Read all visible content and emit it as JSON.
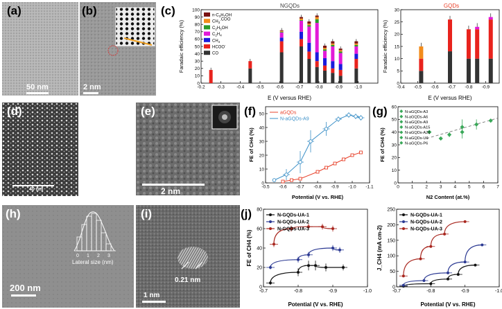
{
  "figure": {
    "panels": {
      "a": {
        "label": "(a)",
        "scale": "50 nm"
      },
      "b": {
        "label": "(b)",
        "scale": "2 nm"
      },
      "c": {
        "label": "(c)"
      },
      "d": {
        "label": "(d)",
        "scale": "40 nm"
      },
      "e": {
        "label": "(e)",
        "scale": "2 nm"
      },
      "f": {
        "label": "(f)"
      },
      "g": {
        "label": "(g)"
      },
      "h": {
        "label": "(h)",
        "scale": "200 nm",
        "inset_xlabel": "Lateral size (nm)",
        "inset_ticks": [
          "0",
          "1",
          "2",
          "3"
        ]
      },
      "i": {
        "label": "(i)",
        "scale": "1 nm",
        "lattice": "0.21 nm"
      },
      "j": {
        "label": "(j)"
      }
    },
    "colors": {
      "co": "#333333",
      "hcoo": "#e8231d",
      "ch4": "#1a1adc",
      "c2h4": "#e21ad8",
      "c2h5oh": "#2a9a2a",
      "ch3coo": "#f28c1c",
      "npr": "#7a1313",
      "red": "#e8412a",
      "blue": "#3a8fc7",
      "green": "#3aa859",
      "j1": "#111111",
      "j2": "#2c3a93",
      "j3": "#a8261e"
    }
  },
  "chart_data": [
    {
      "id": "c-left",
      "type": "bar",
      "stacked": true,
      "title": "NGQDs",
      "xlabel": "E (V versus RHE)",
      "ylabel": "Faradaic efficiency (%)",
      "xlim": [
        -0.2,
        -1.1
      ],
      "ylim": [
        0,
        100
      ],
      "xticks": [
        "-0.2",
        "-0.3",
        "-0.4",
        "-0.5",
        "-0.6",
        "-0.7",
        "-0.8",
        "-0.9",
        "-1.0"
      ],
      "yticks": [
        "0",
        "10",
        "20",
        "30",
        "40",
        "50",
        "60",
        "70",
        "80",
        "90",
        "100"
      ],
      "legend": [
        "n-C3H7OH",
        "CH3COO-",
        "C2H5OH",
        "C2H4",
        "CH4",
        "HCOO-",
        "CO"
      ],
      "legend_display": [
        {
          "t": "n-C",
          "sub": "3",
          "t2": "H",
          "sub2": "7",
          "t3": "OH"
        },
        {
          "t": "CH",
          "sub": "3",
          "t2": "COO",
          "sup": "-"
        },
        {
          "t": "C",
          "sub": "2",
          "t2": "H",
          "sub2": "5",
          "t3": "OH"
        },
        {
          "t": "C",
          "sub": "2",
          "t2": "H",
          "sub2": "4"
        },
        {
          "t": "CH",
          "sub": "4"
        },
        {
          "t": "HCOO",
          "sup": "-"
        },
        {
          "t": "CO"
        }
      ],
      "x": [
        -0.25,
        -0.45,
        -0.61,
        -0.71,
        -0.75,
        -0.79,
        -0.83,
        -0.87,
        -0.91,
        -0.99
      ],
      "series": [
        {
          "name": "CO",
          "values": [
            0,
            20,
            42,
            50,
            33,
            22,
            17,
            14,
            10,
            20
          ]
        },
        {
          "name": "HCOO-",
          "values": [
            18,
            10,
            15,
            10,
            10,
            8,
            7,
            6,
            8,
            13
          ]
        },
        {
          "name": "CH4",
          "values": [
            0,
            0,
            5,
            10,
            12,
            12,
            10,
            10,
            8,
            7
          ]
        },
        {
          "name": "C2H4",
          "values": [
            0,
            0,
            7,
            15,
            22,
            40,
            10,
            20,
            15,
            10
          ]
        },
        {
          "name": "C2H5OH",
          "values": [
            0,
            0,
            1,
            1,
            2,
            5,
            2,
            2,
            2,
            2
          ]
        },
        {
          "name": "CH3COO-",
          "values": [
            0,
            0,
            1,
            2,
            2,
            3,
            2,
            2,
            2,
            2
          ]
        },
        {
          "name": "n-C3H7OH",
          "values": [
            0,
            0,
            1,
            2,
            3,
            2,
            3,
            3,
            2,
            3
          ]
        }
      ]
    },
    {
      "id": "c-right",
      "type": "bar",
      "stacked": true,
      "title": "GQDs",
      "xlabel": "E (V versus RHE)",
      "ylabel": "Faradaic efficiency (%)",
      "xlim": [
        -0.4,
        -0.98
      ],
      "ylim": [
        0,
        30
      ],
      "xticks": [
        "-0.4",
        "-0.5",
        "-0.6",
        "-0.7",
        "-0.8",
        "-0.9"
      ],
      "yticks": [
        "0",
        "5",
        "10",
        "15",
        "20",
        "25",
        "30"
      ],
      "x": [
        -0.52,
        -0.69,
        -0.8,
        -0.85,
        -0.93
      ],
      "series": [
        {
          "name": "CO",
          "values": [
            5,
            13,
            10,
            10,
            10
          ]
        },
        {
          "name": "HCOO-",
          "values": [
            5,
            13,
            12,
            12,
            16
          ]
        },
        {
          "name": "CH3COO-",
          "values": [
            5,
            0,
            0,
            0,
            0
          ]
        },
        {
          "name": "C2H4",
          "values": [
            0,
            0,
            0,
            1,
            1
          ]
        }
      ]
    },
    {
      "id": "f",
      "type": "line",
      "xlabel": "Potential (V vs. RHE)",
      "ylabel": "FE of CH4 (%)",
      "xlim": [
        -0.5,
        -1.1
      ],
      "ylim": [
        0,
        55
      ],
      "xticks": [
        "-0.5",
        "-0.6",
        "-0.7",
        "-0.8",
        "-0.9",
        "-1.0",
        "-1.1"
      ],
      "yticks": [
        "0",
        "10",
        "20",
        "30",
        "40",
        "50"
      ],
      "legend": [
        "aGQDs",
        "N-aGQDs-A9"
      ],
      "series": [
        {
          "name": "aGQDs",
          "x": [
            -0.6,
            -0.65,
            -0.7,
            -0.8,
            -0.85,
            -0.9,
            -0.95,
            -1.0,
            -1.05
          ],
          "y": [
            1,
            2,
            3,
            8,
            11,
            14,
            17,
            20,
            22
          ]
        },
        {
          "name": "N-aGQDs-A9",
          "x": [
            -0.55,
            -0.62,
            -0.7,
            -0.76,
            -0.85,
            -0.92,
            -0.98,
            -1.02,
            -1.05
          ],
          "y": [
            2,
            6,
            15,
            30,
            39,
            46,
            49,
            48,
            47
          ],
          "err": [
            0,
            4,
            8,
            8,
            5,
            2,
            2,
            2,
            2
          ]
        }
      ]
    },
    {
      "id": "g",
      "type": "scatter",
      "xlabel": "N2 Content (at.%)",
      "ylabel": "FE of CH4 (%)",
      "xlim": [
        0,
        7
      ],
      "ylim": [
        0,
        60
      ],
      "xticks": [
        "0",
        "1",
        "2",
        "3",
        "4",
        "5",
        "6",
        "7"
      ],
      "yticks": [
        "0",
        "10",
        "20",
        "30",
        "40",
        "50",
        "60"
      ],
      "legend": [
        "N-aGQDs-A3",
        "N-aGQDs-A6",
        "N-aGQDs-A9",
        "N-aGQDs-A15",
        "N-aGQDs-A20",
        "N-aGQDs-U6",
        "N-aGQDs-P6"
      ],
      "points": [
        {
          "name": "N-aGQDs-A3",
          "x": 2.2,
          "y": 40,
          "err": 0
        },
        {
          "name": "N-aGQDs-A6",
          "x": 3.0,
          "y": 35,
          "err": 1
        },
        {
          "name": "N-aGQDs-A9",
          "x": 6.5,
          "y": 49,
          "err": 1
        },
        {
          "name": "N-aGQDs-A15",
          "x": 4.5,
          "y": 40,
          "err": 5
        },
        {
          "name": "N-aGQDs-A20",
          "x": 5.5,
          "y": 46,
          "err": 4
        },
        {
          "name": "N-aGQDs-U6",
          "x": 4.5,
          "y": 44,
          "err": 6
        },
        {
          "name": "N-aGQDs-P6",
          "x": 3.6,
          "y": 38,
          "err": 2
        }
      ],
      "fit_line": {
        "x": [
          2,
          7
        ],
        "y": [
          35,
          51
        ]
      }
    },
    {
      "id": "j-left",
      "type": "line",
      "xlabel": "Potential (V vs. RHE)",
      "ylabel": "FE of CH4 (%)",
      "xlim": [
        -0.7,
        -1.0
      ],
      "ylim": [
        0,
        80
      ],
      "xticks": [
        "-0.7",
        "-0.8",
        "-0.9",
        "-1.0"
      ],
      "yticks": [
        "0",
        "20",
        "40",
        "60",
        "80"
      ],
      "legend": [
        "N-GQDs-UA-1",
        "N-GQDs-UA-2",
        "N-GQDs-UA-3"
      ],
      "series": [
        {
          "name": "N-GQDs-UA-1",
          "x": [
            -0.72,
            -0.8,
            -0.83,
            -0.85,
            -0.88,
            -0.93
          ],
          "y": [
            4,
            15,
            22,
            22,
            20,
            20
          ],
          "err": [
            2,
            4,
            5,
            5,
            4,
            3
          ]
        },
        {
          "name": "N-GQDs-UA-2",
          "x": [
            -0.72,
            -0.8,
            -0.83,
            -0.9,
            -0.92
          ],
          "y": [
            20,
            28,
            33,
            40,
            38
          ],
          "err": [
            2,
            3,
            3,
            3,
            3
          ]
        },
        {
          "name": "N-GQDs-UA-3",
          "x": [
            -0.73,
            -0.78,
            -0.83,
            -0.87,
            -0.9
          ],
          "y": [
            44,
            60,
            62,
            62,
            60
          ],
          "err": [
            3,
            3,
            3,
            3,
            3
          ]
        }
      ]
    },
    {
      "id": "j-right",
      "type": "line",
      "xlabel": "Potential (V vs. RHE)",
      "ylabel": "J_CH4 (mA cm-2)",
      "xlim": [
        -0.7,
        -1.0
      ],
      "ylim": [
        0,
        250
      ],
      "xticks": [
        "-0.7",
        "-0.8",
        "-0.9",
        "-1.0"
      ],
      "yticks": [
        "0",
        "50",
        "100",
        "150",
        "200",
        "250"
      ],
      "legend": [
        "N-GQDs-UA-1",
        "N-GQDs-UA-2",
        "N-GQDs-UA-3"
      ],
      "series": [
        {
          "name": "N-GQDs-UA-1",
          "x": [
            -0.72,
            -0.8,
            -0.85,
            -0.88,
            -0.93
          ],
          "y": [
            2,
            10,
            25,
            40,
            70
          ]
        },
        {
          "name": "N-GQDs-UA-2",
          "x": [
            -0.72,
            -0.78,
            -0.85,
            -0.9,
            -0.95
          ],
          "y": [
            5,
            20,
            45,
            80,
            135
          ]
        },
        {
          "name": "N-GQDs-UA-3",
          "x": [
            -0.72,
            -0.77,
            -0.8,
            -0.84,
            -0.9
          ],
          "y": [
            35,
            90,
            130,
            170,
            210
          ]
        }
      ]
    }
  ]
}
